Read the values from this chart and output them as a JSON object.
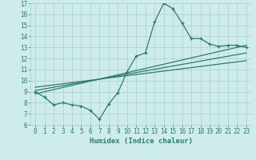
{
  "main_x": [
    0,
    1,
    2,
    3,
    4,
    5,
    6,
    7,
    8,
    9,
    10,
    11,
    12,
    13,
    14,
    15,
    16,
    17,
    18,
    19,
    20,
    21,
    22,
    23
  ],
  "main_y": [
    9.0,
    8.5,
    7.8,
    8.0,
    7.8,
    7.7,
    7.3,
    6.5,
    7.9,
    8.9,
    10.8,
    12.2,
    12.5,
    15.3,
    17.0,
    16.5,
    15.2,
    13.8,
    13.8,
    13.3,
    13.1,
    13.2,
    13.2,
    13.0
  ],
  "line1_x": [
    0,
    23
  ],
  "line1_y": [
    8.8,
    13.2
  ],
  "line2_x": [
    0,
    23
  ],
  "line2_y": [
    9.1,
    12.5
  ],
  "line3_x": [
    0,
    23
  ],
  "line3_y": [
    9.4,
    11.8
  ],
  "color": "#2d7a6e",
  "bg_color": "#ceecea",
  "grid_color": "#aed4d0",
  "xlabel": "Humidex (Indice chaleur)",
  "xlim": [
    -0.5,
    23.5
  ],
  "ylim": [
    6,
    17
  ],
  "xticks": [
    0,
    1,
    2,
    3,
    4,
    5,
    6,
    7,
    8,
    9,
    10,
    11,
    12,
    13,
    14,
    15,
    16,
    17,
    18,
    19,
    20,
    21,
    22,
    23
  ],
  "yticks": [
    6,
    7,
    8,
    9,
    10,
    11,
    12,
    13,
    14,
    15,
    16,
    17
  ],
  "tick_fontsize": 5.5,
  "xlabel_fontsize": 6.5
}
